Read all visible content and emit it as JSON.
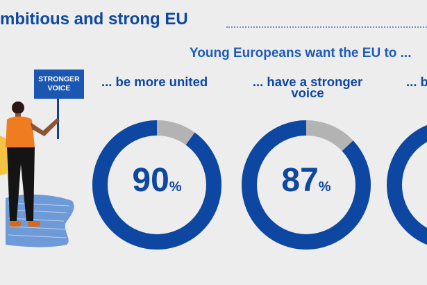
{
  "header": {
    "title": "mbitious and strong EU",
    "subtitle": "Young Europeans want the EU to ..."
  },
  "sign": {
    "line1": "STRONGER",
    "line2": "VOICE"
  },
  "stats": [
    {
      "label": "... be more united",
      "value": 90,
      "display": "90",
      "unit": "%"
    },
    {
      "label_line1": "... have a stronger",
      "label_line2": "voice",
      "value": 87,
      "display": "87",
      "unit": "%"
    },
    {
      "label": "... b"
    }
  ],
  "colors": {
    "ring": "#0e47a1",
    "ring_rest": "#b3b3b3",
    "title": "#0e47a1"
  }
}
